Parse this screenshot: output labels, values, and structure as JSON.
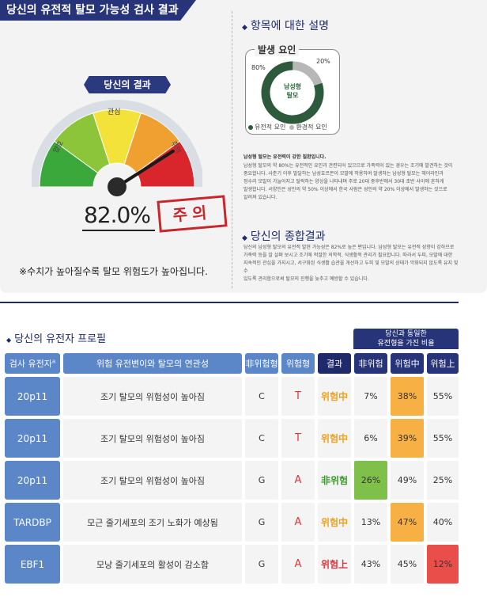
{
  "banner": "당신의 유전적 탈모 가능성 검사 결과",
  "result_badge": "당신의 결과",
  "gauge": {
    "label_left": "양호",
    "label_mid": "관심",
    "label_right": "주의",
    "percent": "82.0%",
    "value_fraction": 0.82,
    "colors": [
      "#3aa83a",
      "#8cc43a",
      "#f2e23a",
      "#f0a030",
      "#d8262c"
    ]
  },
  "stamp": "주의",
  "note": "※수치가 높아질수록 탈모 위험도가 높아집니다.",
  "explain": {
    "heading": "항목에 대한 설명",
    "donut_title": "발생 요인",
    "donut_center_1": "남성형",
    "donut_center_2": "탈모",
    "pct_left": "80%",
    "pct_right": "20%",
    "genetic_fraction": 0.8,
    "legend_genetic": "유전적 요인",
    "legend_env": "환경적 요인",
    "para_title": "남성형 탈모는 유전력이 강한 질환입니다.",
    "para_lines": [
      "남성형 탈모의 약 80%는 유전적인 요인과 관련되어 있으므로 가족력이 있는 경우는 조기에 발견하는 것이",
      "중요합니다. 사춘기 이후 발달하는 남성호르몬이 모발에 작용하여 발생하는 남성형 탈모는 헤어라인과",
      "정수리 모발이 가늘어지고 탈락하는 양상을 나타내며 주로 20대 중후반에서 30대 초반 사이에 흔하게",
      "발생합니다. 서양인은 성인의 약 50% 이상에서 한국 사람은 성인의 약 20% 이상에서 발생하는 것으로",
      "알려져 있습니다."
    ]
  },
  "summary": {
    "heading": "당신의 종합결과",
    "lines": [
      "당신의 남성형 탈모의 유전적 발현 가능성은 82%로 높은 편입니다. 남성형 탈모는 유전적 성향이 강하므로",
      "가족력 등을 잘 살펴 보시고 조기에 적절한 의학적, 식생활적 관리가 필요합니다. 따라서 두피, 모발에 대한",
      "지속적인 관심을 가지시고, 서구화된 식생활 습관을 개선하고 두피 및 모발의 상태가 악화되지 않도록 유지 및 수",
      "있도록 관리함으로써 탈모의 진행을 늦추고 예방할 수 있습니다."
    ]
  },
  "profile": {
    "title": "당신의 유전자 프로필",
    "same_header_1": "당신과 동일한",
    "same_header_2": "유전형을 가진 비율",
    "headers": {
      "gene": "검사 유전자",
      "gene_sup": "a",
      "desc": "위험 유전변이와 탈모의 연관성",
      "nonrisk": "非위험형",
      "risk": "위험형",
      "result": "결과",
      "p_non": "非위험",
      "p_mid": "위험中",
      "p_high": "위험上"
    },
    "rows": [
      {
        "gene": "20p11",
        "desc": "조기 탈모의 위험성이 높아짐",
        "nonrisk": "C",
        "risk": "T",
        "result": "위험中",
        "p_non": "7%",
        "p_mid": "38%",
        "p_high": "55%",
        "hl": "mid",
        "res_color": "orange"
      },
      {
        "gene": "20p11",
        "desc": "조기 탈모의 위험성이 높아짐",
        "nonrisk": "C",
        "risk": "T",
        "result": "위험中",
        "p_non": "6%",
        "p_mid": "39%",
        "p_high": "55%",
        "hl": "mid",
        "res_color": "orange"
      },
      {
        "gene": "20p11",
        "desc": "조기 탈모의 위험성이 높아짐",
        "nonrisk": "G",
        "risk": "A",
        "result": "非위험",
        "p_non": "26%",
        "p_mid": "49%",
        "p_high": "25%",
        "hl": "non",
        "res_color": "green"
      },
      {
        "gene": "TARDBP",
        "desc": "모근 줄기세포의 조기 노화가 예상됨",
        "nonrisk": "G",
        "risk": "A",
        "result": "위험中",
        "p_non": "13%",
        "p_mid": "47%",
        "p_high": "40%",
        "hl": "mid",
        "res_color": "orange"
      },
      {
        "gene": "EBF1",
        "desc": "모낭 줄기세포의 활성이 감소함",
        "nonrisk": "G",
        "risk": "A",
        "result": "위험上",
        "p_non": "43%",
        "p_mid": "45%",
        "p_high": "12%",
        "hl": "high",
        "res_color": "red"
      }
    ]
  }
}
